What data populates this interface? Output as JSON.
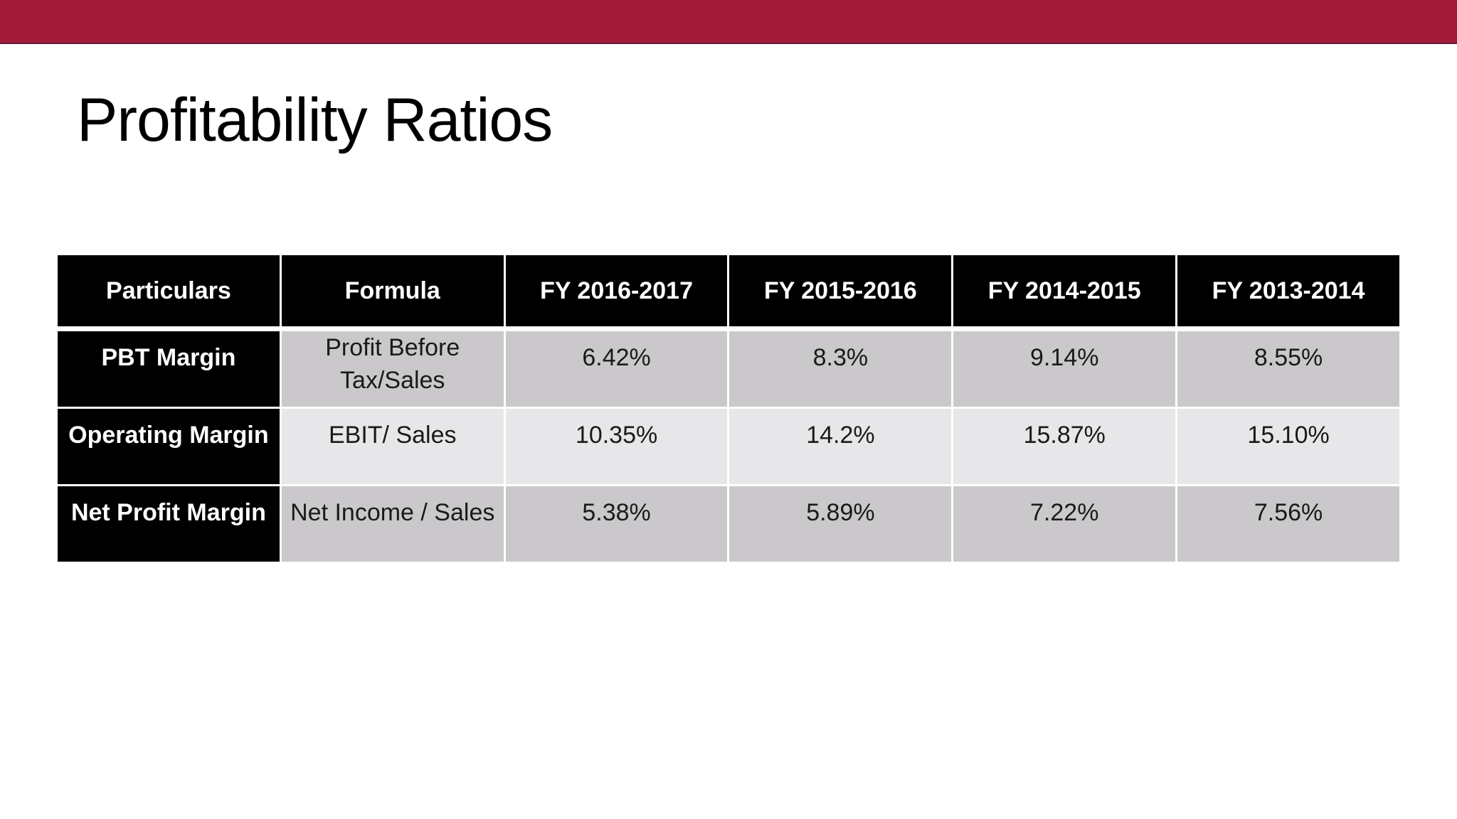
{
  "slide": {
    "title": "Profitability Ratios",
    "bar_color": "#a31938"
  },
  "table": {
    "headers": [
      "Particulars",
      "Formula",
      "FY 2016-2017",
      "FY 2015-2016",
      "FY 2014-2015",
      "FY 2013-2014"
    ],
    "rows": [
      {
        "particular": "PBT Margin",
        "formula": "Profit Before Tax/Sales",
        "values": [
          "6.42%",
          "8.3%",
          "9.14%",
          "8.55%"
        ]
      },
      {
        "particular": "Operating Margin",
        "formula": "EBIT/ Sales",
        "values": [
          "10.35%",
          "14.2%",
          "15.87%",
          "15.10%"
        ]
      },
      {
        "particular": "Net Profit Margin",
        "formula": "Net Income / Sales",
        "values": [
          "5.38%",
          "5.89%",
          "7.22%",
          "7.56%"
        ]
      }
    ]
  }
}
